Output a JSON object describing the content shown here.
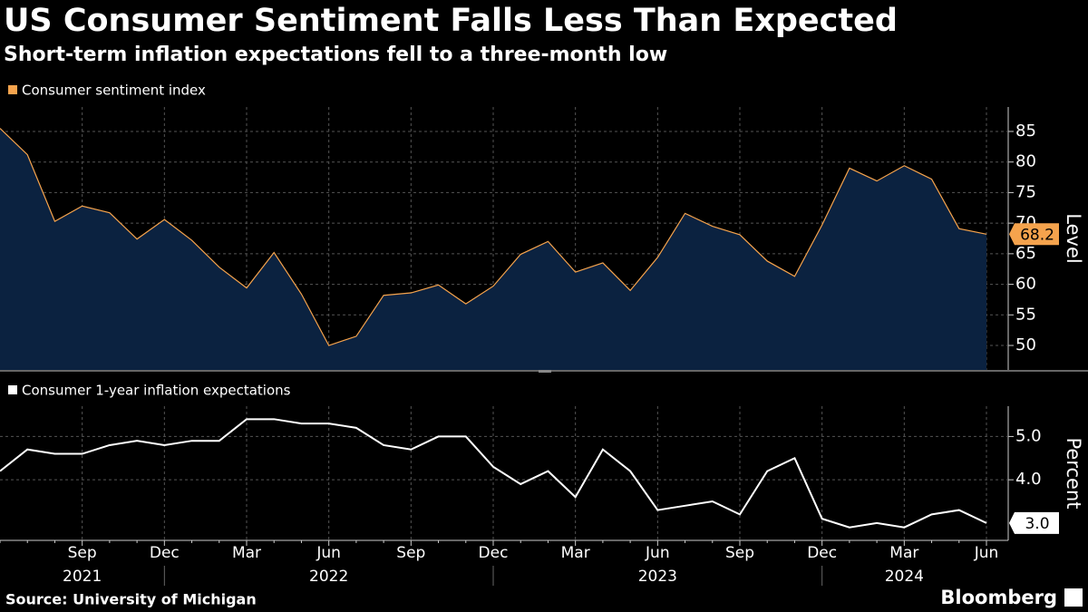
{
  "title": "US Consumer Sentiment Falls Less Than Expected",
  "subtitle": "Short-term inflation expectations fell to a three-month low",
  "source": "Source: University of Michigan",
  "brand": "Bloomberg",
  "chart_data": [
    {
      "type": "area",
      "legend": "Consumer sentiment index",
      "y_axis_label": "Level",
      "color": "#f5a34d",
      "fill": "#0b2240",
      "values": [
        85.5,
        81.2,
        70.3,
        72.8,
        71.7,
        67.4,
        70.6,
        67.2,
        62.8,
        59.4,
        65.2,
        58.4,
        50.0,
        51.5,
        58.2,
        58.6,
        59.9,
        56.8,
        59.7,
        64.9,
        67.0,
        62.0,
        63.5,
        59.0,
        64.4,
        71.6,
        69.5,
        68.1,
        63.8,
        61.3,
        69.7,
        79.0,
        76.9,
        79.4,
        77.2,
        69.1,
        68.2
      ],
      "ylim": [
        46,
        89
      ],
      "yticks": [
        50,
        55,
        60,
        65,
        70,
        75,
        80,
        85
      ],
      "grid": true
    },
    {
      "type": "line",
      "legend": "Consumer 1-year inflation expectations",
      "y_axis_label": "Percent",
      "color": "#ffffff",
      "values": [
        4.2,
        4.7,
        4.6,
        4.6,
        4.8,
        4.9,
        4.8,
        4.9,
        4.9,
        5.4,
        5.4,
        5.3,
        5.3,
        5.2,
        4.8,
        4.7,
        5.0,
        5.0,
        4.3,
        3.9,
        4.2,
        3.6,
        4.7,
        4.2,
        3.3,
        3.4,
        3.5,
        3.2,
        4.2,
        4.5,
        3.1,
        2.9,
        3.0,
        2.9,
        3.2,
        3.3,
        3.0
      ],
      "value_labels": [
        null,
        null,
        null,
        null,
        null,
        null,
        null,
        null,
        null,
        null,
        null,
        null,
        null,
        null,
        null,
        null,
        null,
        null,
        null,
        null,
        null,
        null,
        null,
        null,
        null,
        null,
        null,
        null,
        null,
        null,
        null,
        null,
        null,
        null,
        null,
        null,
        "3.0"
      ],
      "ylim": [
        2.6,
        5.7
      ],
      "yticks": [
        {
          "value": 4,
          "label": "4.0"
        },
        {
          "value": 5,
          "label": "5.0"
        }
      ],
      "grid": true,
      "categories": [
        null,
        null,
        null,
        "Sep",
        null,
        null,
        "Dec",
        null,
        null,
        "Mar",
        null,
        null,
        "Jun",
        null,
        null,
        "Sep",
        null,
        null,
        "Dec",
        null,
        null,
        "Mar",
        null,
        null,
        "Jun",
        null,
        null,
        "Sep",
        null,
        null,
        "Dec",
        null,
        null,
        "Mar",
        null,
        null,
        "Jun"
      ],
      "year_categories": [
        null,
        null,
        null,
        "2021",
        null,
        null,
        null,
        null,
        null,
        null,
        null,
        null,
        "2022",
        null,
        null,
        null,
        null,
        null,
        null,
        null,
        null,
        null,
        null,
        null,
        "2023",
        null,
        null,
        null,
        null,
        null,
        null,
        null,
        null,
        "2024",
        null,
        null,
        null
      ]
    }
  ]
}
